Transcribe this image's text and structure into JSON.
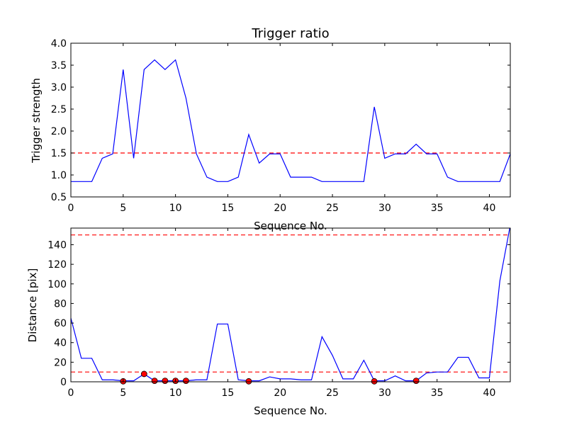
{
  "chart_data": [
    {
      "type": "line",
      "title": "Trigger ratio",
      "xlabel": "Sequence No.",
      "ylabel": "Trigger strength",
      "xlim": [
        0,
        42
      ],
      "ylim": [
        0.5,
        4.0
      ],
      "xticks": [
        "0",
        "5",
        "10",
        "15",
        "20",
        "25",
        "30",
        "35",
        "40"
      ],
      "yticks": [
        "0.5",
        "1.0",
        "1.5",
        "2.0",
        "2.5",
        "3.0",
        "3.5",
        "4.0"
      ],
      "grid": false,
      "series": [
        {
          "color": "#0000ff",
          "x": [
            0,
            1,
            2,
            3,
            4,
            5,
            6,
            7,
            8,
            9,
            10,
            11,
            12,
            13,
            14,
            15,
            16,
            17,
            18,
            19,
            20,
            21,
            22,
            23,
            24,
            25,
            26,
            27,
            28,
            29,
            30,
            31,
            32,
            33,
            34,
            35,
            36,
            37,
            38,
            39,
            40,
            41,
            42
          ],
          "values": [
            0.85,
            0.85,
            0.85,
            1.38,
            1.48,
            3.4,
            1.38,
            3.4,
            3.62,
            3.4,
            3.62,
            2.75,
            1.48,
            0.95,
            0.85,
            0.85,
            0.95,
            1.92,
            1.27,
            1.48,
            1.48,
            0.95,
            0.95,
            0.95,
            0.85,
            0.85,
            0.85,
            0.85,
            0.85,
            2.55,
            1.38,
            1.48,
            1.48,
            1.7,
            1.48,
            1.48,
            0.95,
            0.85,
            0.85,
            0.85,
            0.85,
            0.85,
            1.48
          ]
        }
      ],
      "threshold_lines": [
        {
          "y": 1.5,
          "color": "#ff0000",
          "style": "dashed"
        }
      ]
    },
    {
      "type": "line",
      "title": "",
      "xlabel": "Sequence No.",
      "ylabel": "Distance [pix]",
      "xlim": [
        0,
        42
      ],
      "ylim": [
        0,
        157
      ],
      "xticks": [
        "0",
        "5",
        "10",
        "15",
        "20",
        "25",
        "30",
        "35",
        "40"
      ],
      "yticks": [
        "0",
        "20",
        "40",
        "60",
        "80",
        "100",
        "120",
        "140"
      ],
      "grid": false,
      "series": [
        {
          "color": "#0000ff",
          "x": [
            0,
            1,
            2,
            3,
            4,
            5,
            6,
            7,
            8,
            9,
            10,
            11,
            12,
            13,
            14,
            15,
            16,
            17,
            18,
            19,
            20,
            21,
            22,
            23,
            24,
            25,
            26,
            27,
            28,
            29,
            30,
            31,
            32,
            33,
            34,
            35,
            36,
            37,
            38,
            39,
            40,
            41,
            42
          ],
          "values": [
            65,
            24,
            24,
            2,
            2,
            1,
            1,
            8,
            1,
            1,
            1,
            1,
            2,
            2,
            59,
            59,
            2,
            1,
            1,
            5,
            3,
            3,
            2,
            2,
            46,
            27,
            3,
            3,
            22,
            1,
            1,
            6,
            1,
            1,
            9,
            10,
            10,
            25,
            25,
            4,
            4,
            103,
            160
          ]
        }
      ],
      "markers": {
        "color": "#ff0000",
        "x": [
          5,
          7,
          8,
          9,
          10,
          11,
          17,
          29,
          33
        ],
        "y": [
          0.5,
          8,
          1,
          1,
          1,
          1,
          0.5,
          0.5,
          1
        ]
      },
      "threshold_lines": [
        {
          "y": 10,
          "color": "#ff0000",
          "style": "dashed"
        },
        {
          "y": 150,
          "color": "#ff0000",
          "style": "dashed"
        }
      ]
    }
  ]
}
